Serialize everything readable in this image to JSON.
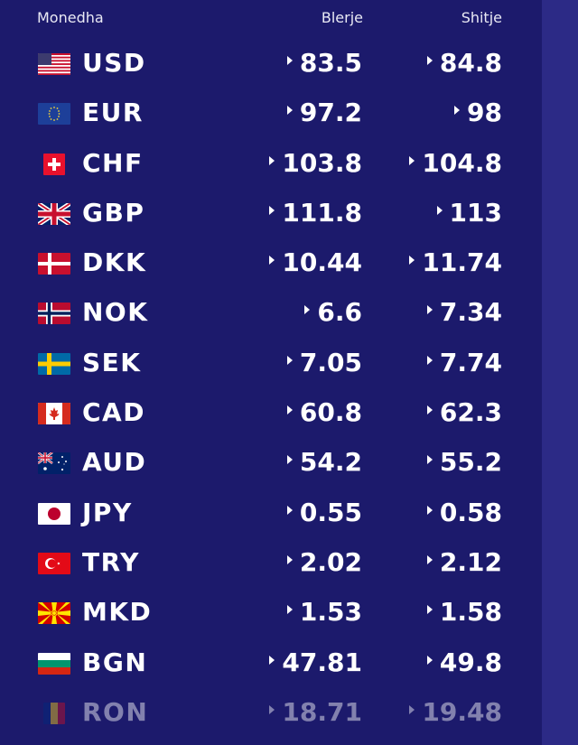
{
  "header": {
    "currency": "Monedha",
    "buy": "Blerje",
    "sell": "Shitje"
  },
  "rates": [
    {
      "code": "USD",
      "buy": "83.5",
      "sell": "84.8",
      "flag_icon": "us-flag-icon"
    },
    {
      "code": "EUR",
      "buy": "97.2",
      "sell": "98",
      "flag_icon": "eu-flag-icon"
    },
    {
      "code": "CHF",
      "buy": "103.8",
      "sell": "104.8",
      "flag_icon": "switzerland-flag-icon"
    },
    {
      "code": "GBP",
      "buy": "111.8",
      "sell": "113",
      "flag_icon": "uk-flag-icon"
    },
    {
      "code": "DKK",
      "buy": "10.44",
      "sell": "11.74",
      "flag_icon": "denmark-flag-icon"
    },
    {
      "code": "NOK",
      "buy": "6.6",
      "sell": "7.34",
      "flag_icon": "norway-flag-icon"
    },
    {
      "code": "SEK",
      "buy": "7.05",
      "sell": "7.74",
      "flag_icon": "sweden-flag-icon"
    },
    {
      "code": "CAD",
      "buy": "60.8",
      "sell": "62.3",
      "flag_icon": "canada-flag-icon"
    },
    {
      "code": "AUD",
      "buy": "54.2",
      "sell": "55.2",
      "flag_icon": "australia-flag-icon"
    },
    {
      "code": "JPY",
      "buy": "0.55",
      "sell": "0.58",
      "flag_icon": "japan-flag-icon"
    },
    {
      "code": "TRY",
      "buy": "2.02",
      "sell": "2.12",
      "flag_icon": "turkey-flag-icon"
    },
    {
      "code": "MKD",
      "buy": "1.53",
      "sell": "1.58",
      "flag_icon": "north-macedonia-flag-icon"
    },
    {
      "code": "BGN",
      "buy": "47.81",
      "sell": "49.8",
      "flag_icon": "bulgaria-flag-icon"
    },
    {
      "code": "RON",
      "buy": "18.71",
      "sell": "19.48",
      "flag_icon": "romania-flag-icon"
    }
  ],
  "colors": {
    "background": "#1c1a6c",
    "side_strip": "#2c2a86",
    "text": "#ffffff"
  }
}
